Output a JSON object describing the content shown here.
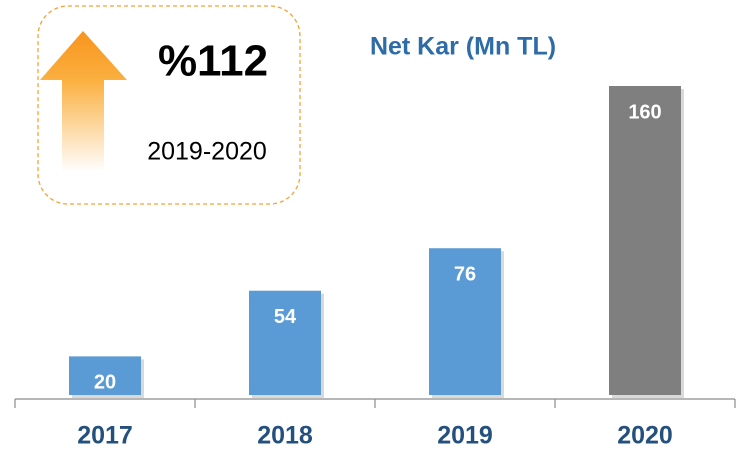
{
  "chart_data": {
    "type": "bar",
    "title": "Net Kar (Mn TL)",
    "categories": [
      "2017",
      "2018",
      "2019",
      "2020"
    ],
    "values": [
      20,
      54,
      76,
      160
    ],
    "colors": [
      "#5b9bd5",
      "#5b9bd5",
      "#5b9bd5",
      "#7f7f7f"
    ],
    "callout": {
      "change": "%112",
      "period": "2019-2020"
    }
  }
}
